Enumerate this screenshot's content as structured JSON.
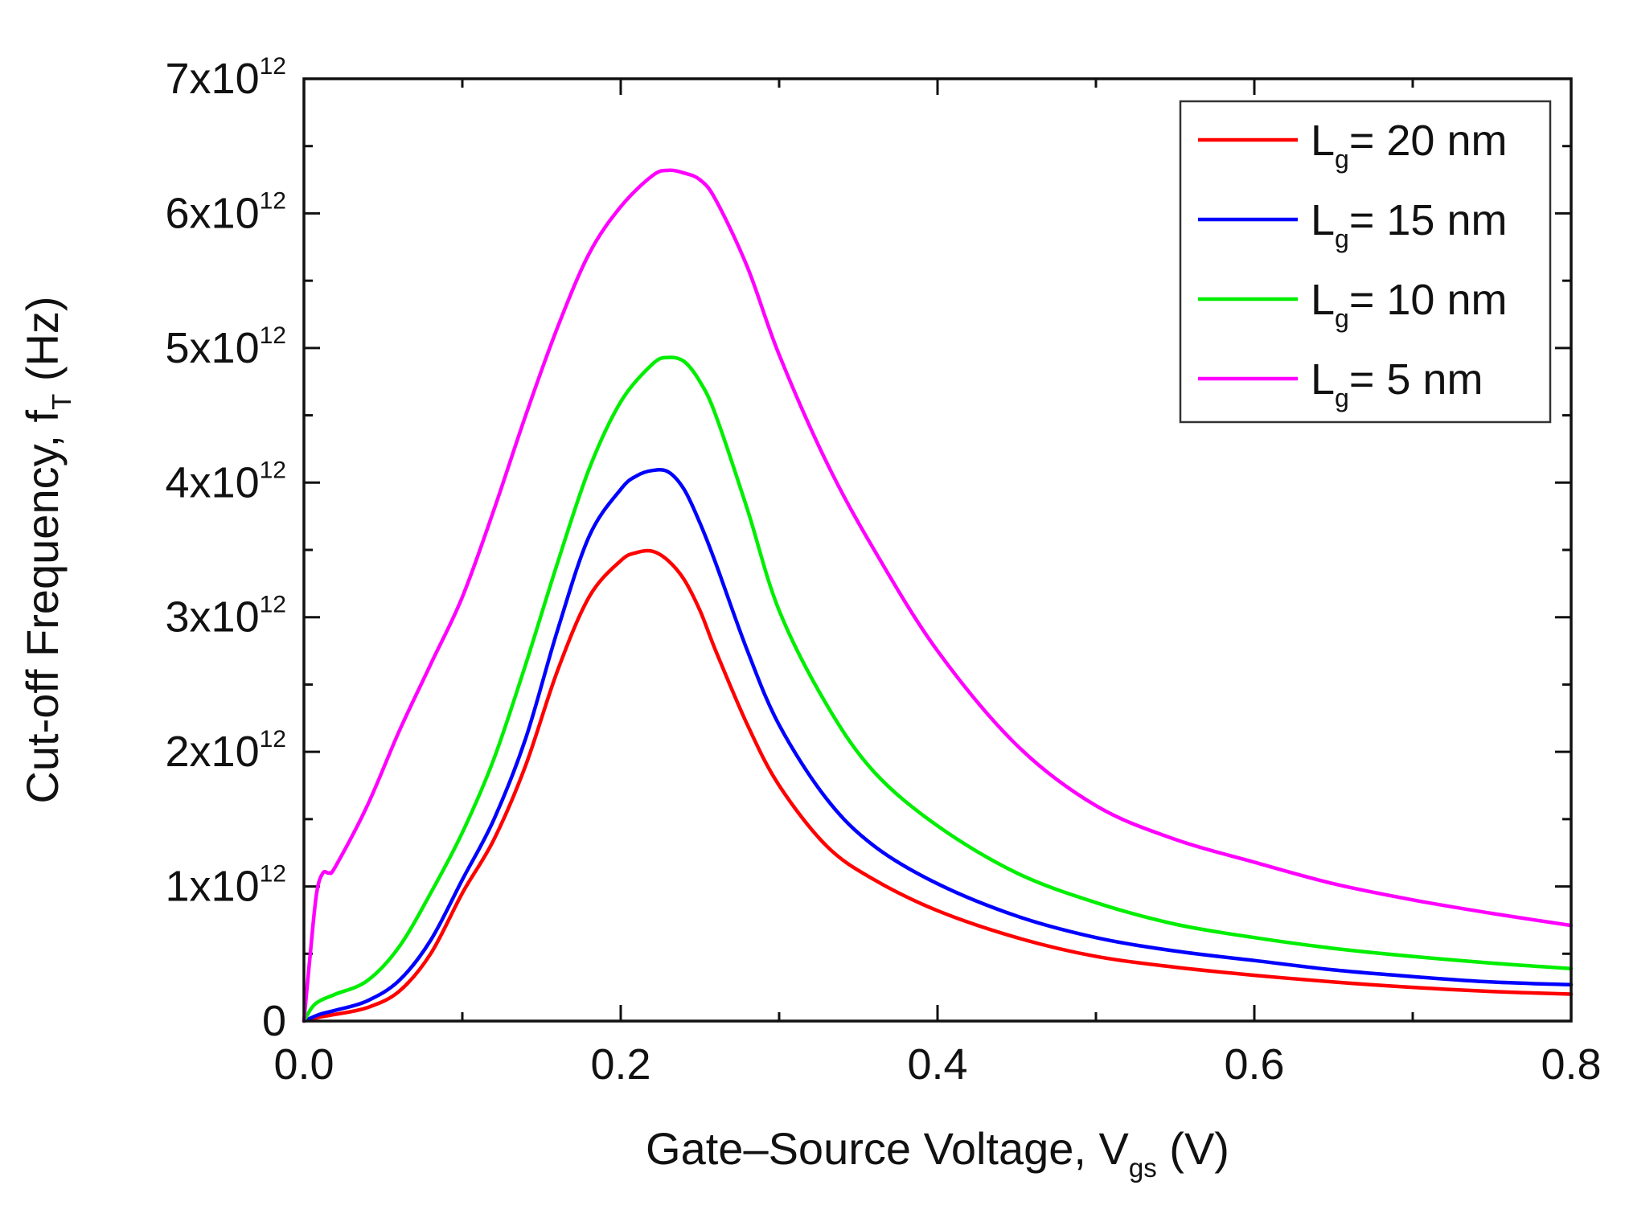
{
  "chart_data": {
    "type": "line",
    "title": "",
    "xlabel": {
      "main": "Gate–Source Voltage, V",
      "sub": "gs",
      "tail": " (V)"
    },
    "ylabel": {
      "main": "Cut-off Frequency, f",
      "sub": "T",
      "tail": " (Hz)"
    },
    "xlim": [
      0,
      0.8
    ],
    "ylim": [
      0,
      7000000000000.0
    ],
    "x_ticks": [
      {
        "value": 0.0,
        "label": "0.0"
      },
      {
        "value": 0.2,
        "label": "0.2"
      },
      {
        "value": 0.4,
        "label": "0.4"
      },
      {
        "value": 0.6,
        "label": "0.6"
      },
      {
        "value": 0.8,
        "label": "0.8"
      }
    ],
    "y_ticks": [
      {
        "value": 0,
        "base": "0",
        "exp": ""
      },
      {
        "value": 1000000000000.0,
        "base": "1x10",
        "exp": "12"
      },
      {
        "value": 2000000000000.0,
        "base": "2x10",
        "exp": "12"
      },
      {
        "value": 3000000000000.0,
        "base": "3x10",
        "exp": "12"
      },
      {
        "value": 4000000000000.0,
        "base": "4x10",
        "exp": "12"
      },
      {
        "value": 5000000000000.0,
        "base": "5x10",
        "exp": "12"
      },
      {
        "value": 6000000000000.0,
        "base": "6x10",
        "exp": "12"
      },
      {
        "value": 7000000000000.0,
        "base": "7x10",
        "exp": "12"
      }
    ],
    "legend_position": "top-right",
    "series": [
      {
        "name": "Lg= 20 nm",
        "label_main": "L",
        "label_sub": "g",
        "label_tail": "= 20 nm",
        "color": "#ff0000",
        "x": [
          0,
          0.01,
          0.02,
          0.04,
          0.06,
          0.08,
          0.1,
          0.12,
          0.14,
          0.16,
          0.18,
          0.2,
          0.21,
          0.22,
          0.23,
          0.24,
          0.25,
          0.26,
          0.28,
          0.3,
          0.33,
          0.36,
          0.4,
          0.45,
          0.5,
          0.55,
          0.6,
          0.65,
          0.7,
          0.75,
          0.8
        ],
        "y": [
          0,
          0.03,
          0.05,
          0.1,
          0.22,
          0.5,
          0.95,
          1.35,
          1.9,
          2.6,
          3.15,
          3.42,
          3.48,
          3.49,
          3.42,
          3.28,
          3.05,
          2.75,
          2.2,
          1.75,
          1.3,
          1.05,
          0.82,
          0.62,
          0.48,
          0.4,
          0.34,
          0.29,
          0.25,
          0.22,
          0.2
        ]
      },
      {
        "name": "Lg= 15 nm",
        "label_main": "L",
        "label_sub": "g",
        "label_tail": "= 15 nm",
        "color": "#0000ff",
        "x": [
          0,
          0.01,
          0.02,
          0.04,
          0.06,
          0.08,
          0.1,
          0.12,
          0.14,
          0.16,
          0.18,
          0.2,
          0.21,
          0.22,
          0.23,
          0.24,
          0.25,
          0.26,
          0.28,
          0.3,
          0.33,
          0.36,
          0.4,
          0.45,
          0.5,
          0.55,
          0.6,
          0.65,
          0.7,
          0.75,
          0.8
        ],
        "y": [
          0,
          0.05,
          0.08,
          0.15,
          0.3,
          0.6,
          1.05,
          1.5,
          2.1,
          2.9,
          3.6,
          3.95,
          4.05,
          4.09,
          4.08,
          3.95,
          3.7,
          3.4,
          2.75,
          2.2,
          1.65,
          1.3,
          1.02,
          0.78,
          0.62,
          0.52,
          0.45,
          0.38,
          0.33,
          0.29,
          0.27
        ]
      },
      {
        "name": "Lg= 10 nm",
        "label_main": "L",
        "label_sub": "g",
        "label_tail": "= 10 nm",
        "color": "#00ee00",
        "x": [
          0,
          0.005,
          0.01,
          0.02,
          0.04,
          0.06,
          0.08,
          0.1,
          0.12,
          0.14,
          0.16,
          0.18,
          0.2,
          0.22,
          0.23,
          0.24,
          0.25,
          0.26,
          0.28,
          0.3,
          0.33,
          0.36,
          0.4,
          0.45,
          0.5,
          0.55,
          0.6,
          0.65,
          0.7,
          0.75,
          0.8
        ],
        "y": [
          0,
          0.1,
          0.15,
          0.2,
          0.3,
          0.55,
          0.95,
          1.4,
          1.95,
          2.65,
          3.4,
          4.1,
          4.6,
          4.88,
          4.93,
          4.9,
          4.75,
          4.5,
          3.8,
          3.05,
          2.35,
          1.85,
          1.45,
          1.1,
          0.88,
          0.72,
          0.62,
          0.54,
          0.48,
          0.43,
          0.39
        ]
      },
      {
        "name": "Lg= 5 nm",
        "label_main": "L",
        "label_sub": "g",
        "label_tail": "= 5 nm",
        "color": "#ff00ff",
        "x": [
          0,
          0.004,
          0.008,
          0.012,
          0.016,
          0.02,
          0.04,
          0.06,
          0.08,
          0.1,
          0.12,
          0.14,
          0.16,
          0.18,
          0.2,
          0.22,
          0.23,
          0.24,
          0.25,
          0.26,
          0.28,
          0.3,
          0.33,
          0.36,
          0.4,
          0.45,
          0.5,
          0.55,
          0.6,
          0.65,
          0.7,
          0.75,
          0.8
        ],
        "y": [
          0,
          0.5,
          0.95,
          1.1,
          1.1,
          1.15,
          1.6,
          2.15,
          2.65,
          3.15,
          3.8,
          4.5,
          5.15,
          5.7,
          6.05,
          6.28,
          6.32,
          6.3,
          6.25,
          6.1,
          5.6,
          4.95,
          4.15,
          3.5,
          2.75,
          2.05,
          1.6,
          1.35,
          1.18,
          1.02,
          0.9,
          0.8,
          0.71
        ]
      }
    ]
  }
}
